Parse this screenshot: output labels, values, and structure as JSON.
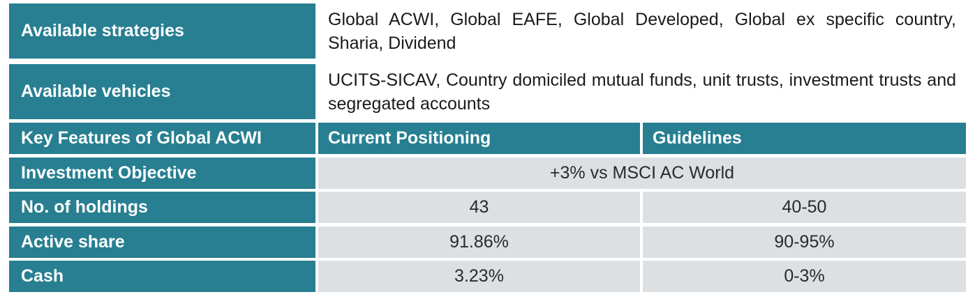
{
  "strategies": {
    "label": "Available strategies",
    "value": "Global ACWI, Global EAFE, Global Developed, Global ex specific country, Sharia, Dividend"
  },
  "vehicles": {
    "label": "Available vehicles",
    "value": "UCITS-SICAV, Country domiciled mutual funds, unit trusts, investment trusts and segregated accounts"
  },
  "table": {
    "headers": [
      "Key Features of Global ACWI",
      "Current Positioning",
      "Guidelines"
    ],
    "objective": {
      "label": "Investment Objective",
      "value": "+3% vs MSCI AC World"
    },
    "rows": [
      {
        "label": "No. of holdings",
        "current": "43",
        "guideline": "40-50"
      },
      {
        "label": "Active share",
        "current": "91.86%",
        "guideline": "90-95%"
      },
      {
        "label": "Cash",
        "current": "3.23%",
        "guideline": "0-3%"
      }
    ]
  },
  "colors": {
    "header_teal": "#277f91",
    "value_gray": "#dde0e3"
  }
}
